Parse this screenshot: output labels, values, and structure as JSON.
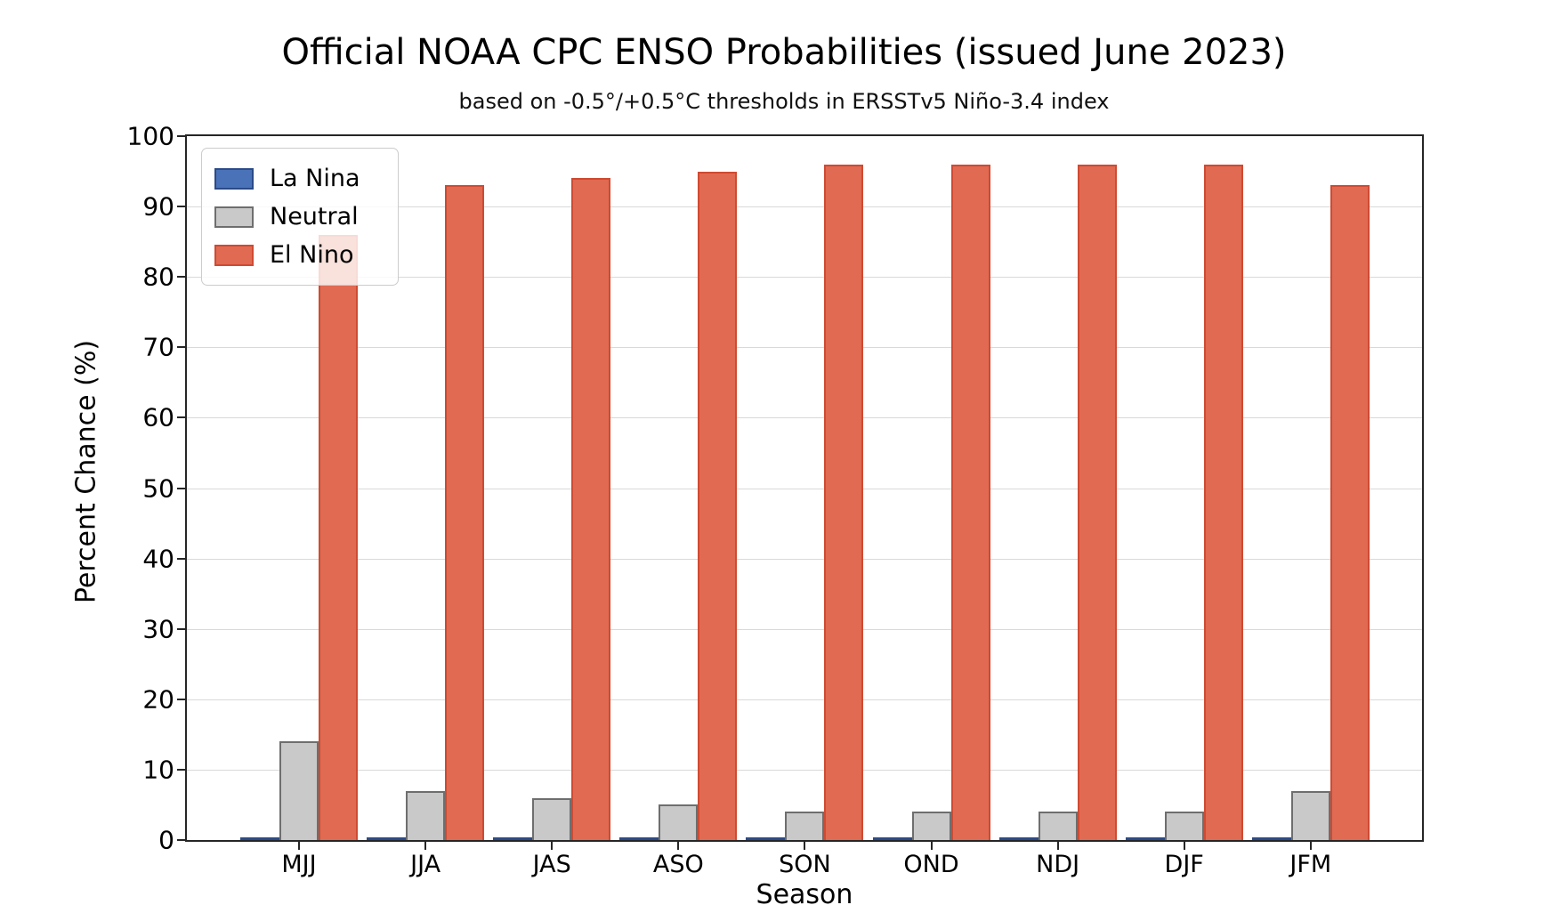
{
  "chart_data": {
    "type": "bar",
    "title": "Official NOAA CPC ENSO Probabilities (issued June 2023)",
    "subtitle": "based on -0.5°/+0.5°C thresholds in ERSSTv5 Niño-3.4 index",
    "xlabel": "Season",
    "ylabel": "Percent Chance (%)",
    "categories": [
      "MJJ",
      "JJA",
      "JAS",
      "ASO",
      "SON",
      "OND",
      "NDJ",
      "DJF",
      "JFM"
    ],
    "series": [
      {
        "name": "La Nina",
        "color": "#4a72b8",
        "edge_color": "#2b4a87",
        "values": [
          0,
          0,
          0,
          0,
          0,
          0,
          0,
          0,
          0
        ]
      },
      {
        "name": "Neutral",
        "color": "#c9c9c9",
        "edge_color": "#6e6e6e",
        "values": [
          14,
          7,
          6,
          5,
          4,
          4,
          4,
          4,
          7
        ]
      },
      {
        "name": "El Nino",
        "color": "#e06a52",
        "edge_color": "#cf4a32",
        "values": [
          86,
          93,
          94,
          95,
          96,
          96,
          96,
          96,
          93
        ]
      }
    ],
    "ylim": [
      0,
      100
    ],
    "yticks": [
      0,
      10,
      20,
      30,
      40,
      50,
      60,
      70,
      80,
      90,
      100
    ],
    "grid": true,
    "legend_position": "upper left"
  }
}
